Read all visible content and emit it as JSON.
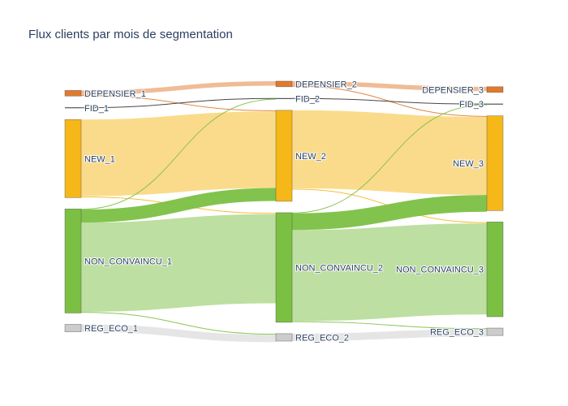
{
  "chart_data": {
    "type": "sankey",
    "title": "Flux clients par mois de segmentation",
    "node_types": {
      "DEPENSIER": {
        "color": "#e07a2f"
      },
      "FID": {
        "color": "#333333"
      },
      "NEW": {
        "color": "#f6b818"
      },
      "NON_CONVAINCU": {
        "color": "#7bc043"
      },
      "REG_ECO": {
        "color": "#cccccc"
      }
    },
    "columns": [
      [
        {
          "id": "DEPENSIER_1",
          "label": "DEPENSIER_1",
          "type": "DEPENSIER",
          "value": 1.5
        },
        {
          "id": "FID_1",
          "label": "FID_1",
          "type": "FID",
          "value": 0.2
        },
        {
          "id": "NEW_1",
          "label": "NEW_1",
          "type": "NEW",
          "value": 21
        },
        {
          "id": "NON_CONVAINCU_1",
          "label": "NON_CONVAINCU_1",
          "type": "NON_CONVAINCU",
          "value": 28
        },
        {
          "id": "REG_ECO_1",
          "label": "REG_ECO_1",
          "type": "REG_ECO",
          "value": 2
        }
      ],
      [
        {
          "id": "DEPENSIER_2",
          "label": "DEPENSIER_2",
          "type": "DEPENSIER",
          "value": 1.5
        },
        {
          "id": "FID_2",
          "label": "FID_2",
          "type": "FID",
          "value": 0.2
        },
        {
          "id": "NEW_2",
          "label": "NEW_2",
          "type": "NEW",
          "value": 24.5
        },
        {
          "id": "NON_CONVAINCU_2",
          "label": "NON_CONVAINCU_2",
          "type": "NON_CONVAINCU",
          "value": 29.5
        },
        {
          "id": "REG_ECO_2",
          "label": "REG_ECO_2",
          "type": "REG_ECO",
          "value": 2
        }
      ],
      [
        {
          "id": "DEPENSIER_3",
          "label": "DEPENSIER_3",
          "type": "DEPENSIER",
          "value": 1.5
        },
        {
          "id": "FID_3",
          "label": "FID_3",
          "type": "FID",
          "value": 0.2
        },
        {
          "id": "NEW_3",
          "label": "NEW_3",
          "type": "NEW",
          "value": 25.5
        },
        {
          "id": "NON_CONVAINCU_3",
          "label": "NON_CONVAINCU_3",
          "type": "NON_CONVAINCU",
          "value": 25.5
        },
        {
          "id": "REG_ECO_3",
          "label": "REG_ECO_3",
          "type": "REG_ECO",
          "value": 2
        }
      ]
    ],
    "links": [
      {
        "source": "DEPENSIER_1",
        "target": "DEPENSIER_2",
        "value": 1.2
      },
      {
        "source": "DEPENSIER_1",
        "target": "NEW_2",
        "value": 0.3
      },
      {
        "source": "FID_1",
        "target": "FID_2",
        "value": 0.2
      },
      {
        "source": "NEW_1",
        "target": "NEW_2",
        "value": 20.6
      },
      {
        "source": "NEW_1",
        "target": "NON_CONVAINCU_2",
        "value": 0.4
      },
      {
        "source": "NON_CONVAINCU_1",
        "target": "NEW_2",
        "value": 3.5
      },
      {
        "source": "NON_CONVAINCU_1",
        "target": "NON_CONVAINCU_2",
        "value": 24
      },
      {
        "source": "NON_CONVAINCU_1",
        "target": "REG_ECO_2",
        "value": 0.3
      },
      {
        "source": "NON_CONVAINCU_1",
        "target": "FID_2",
        "value": 0.1
      },
      {
        "source": "REG_ECO_1",
        "target": "REG_ECO_2",
        "value": 2
      },
      {
        "source": "DEPENSIER_2",
        "target": "DEPENSIER_3",
        "value": 1.2
      },
      {
        "source": "DEPENSIER_2",
        "target": "NEW_3",
        "value": 0.3
      },
      {
        "source": "FID_2",
        "target": "FID_3",
        "value": 0.2
      },
      {
        "source": "NEW_2",
        "target": "NEW_3",
        "value": 21
      },
      {
        "source": "NEW_2",
        "target": "NON_CONVAINCU_3",
        "value": 0.4
      },
      {
        "source": "NON_CONVAINCU_2",
        "target": "NEW_3",
        "value": 4.5
      },
      {
        "source": "NON_CONVAINCU_2",
        "target": "NON_CONVAINCU_3",
        "value": 24.5
      },
      {
        "source": "NON_CONVAINCU_2",
        "target": "REG_ECO_3",
        "value": 0.3
      },
      {
        "source": "NON_CONVAINCU_2",
        "target": "FID_3",
        "value": 0.1
      },
      {
        "source": "REG_ECO_2",
        "target": "REG_ECO_3",
        "value": 2
      }
    ]
  }
}
